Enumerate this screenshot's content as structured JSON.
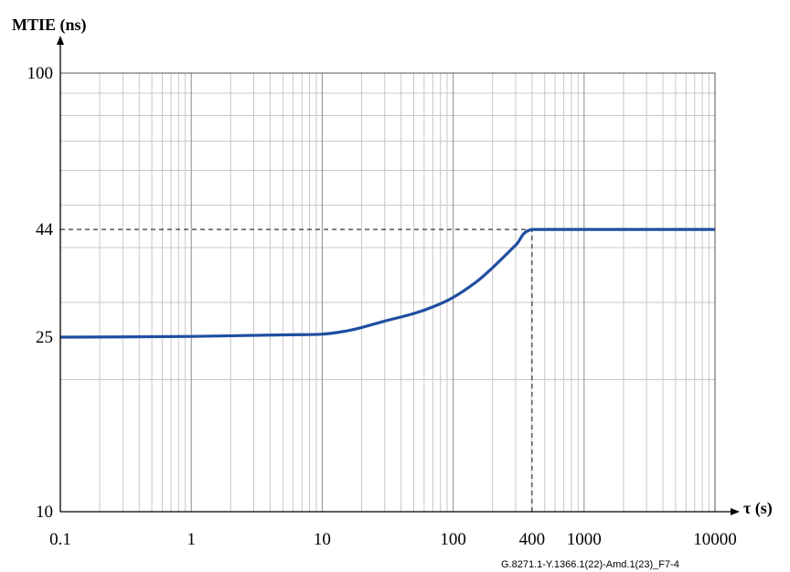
{
  "chart_data": {
    "type": "line",
    "ylabel": "MTIE (ns)",
    "xlabel": "τ (s)",
    "x_scale": "log",
    "y_scale": "log",
    "xlim": [
      0.1,
      10000
    ],
    "ylim": [
      10,
      100
    ],
    "grid": true,
    "x_ticks": [
      {
        "value": 0.1,
        "label": "0.1"
      },
      {
        "value": 1,
        "label": "1"
      },
      {
        "value": 10,
        "label": "10"
      },
      {
        "value": 100,
        "label": "100"
      },
      {
        "value": 400,
        "label": "400"
      },
      {
        "value": 1000,
        "label": "1000"
      },
      {
        "value": 10000,
        "label": "10000"
      }
    ],
    "y_ticks": [
      {
        "value": 10,
        "label": "10"
      },
      {
        "value": 25,
        "label": "25"
      },
      {
        "value": 44,
        "label": "44"
      },
      {
        "value": 100,
        "label": "100"
      }
    ],
    "series": [
      {
        "color": "#1f4ea0",
        "x": [
          0.1,
          1,
          5,
          10,
          15,
          20,
          30,
          50,
          70,
          100,
          150,
          200,
          300,
          400,
          1000,
          10000
        ],
        "y": [
          25,
          25.1,
          25.3,
          25.4,
          25.8,
          26.3,
          27.2,
          28.3,
          29.3,
          30.8,
          33.4,
          36,
          40.5,
          44,
          44,
          44
        ]
      }
    ],
    "reference_lines": [
      {
        "type": "horizontal",
        "y": 44,
        "x_from": 0.1,
        "x_to": 400,
        "style": "dashed"
      },
      {
        "type": "vertical",
        "x": 400,
        "y_from": 10,
        "y_to": 44,
        "style": "dashed"
      }
    ]
  },
  "figure_id": "G.8271.1-Y.1366.1(22)-Amd.1(23)_F7-4"
}
